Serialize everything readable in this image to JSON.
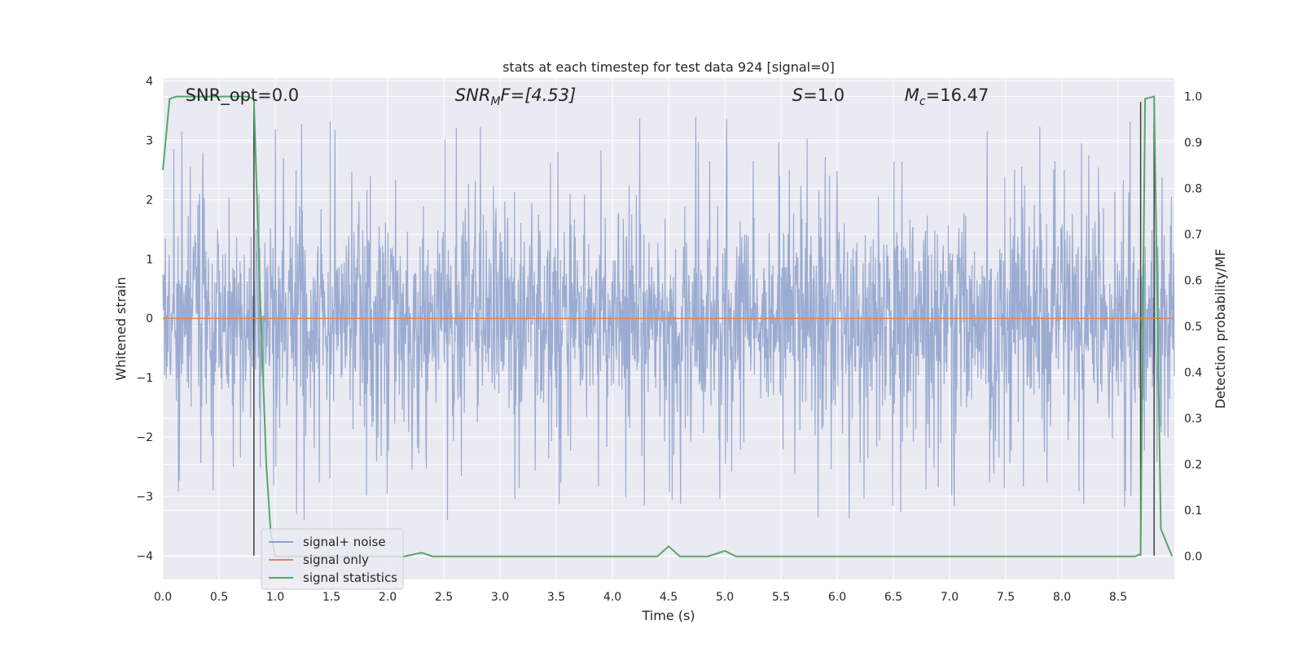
{
  "chart_data": {
    "type": "line",
    "title": "stats at each timestep for test data 924 [signal=0]",
    "xlabel": "Time (s)",
    "ylabel": "Whitened strain",
    "y2label": "Detection probability/MF",
    "xlim": [
      0.0,
      9.0
    ],
    "ylim": [
      -4.4,
      4.05
    ],
    "y2lim": [
      -0.05,
      1.04
    ],
    "x_ticks": [
      "0.0",
      "0.5",
      "1.0",
      "1.5",
      "2.0",
      "2.5",
      "3.0",
      "3.5",
      "4.0",
      "4.5",
      "5.0",
      "5.5",
      "6.0",
      "6.5",
      "7.0",
      "7.5",
      "8.0",
      "8.5"
    ],
    "y_ticks": [
      "4",
      "3",
      "2",
      "1",
      "0",
      "−1",
      "−2",
      "−3",
      "−4"
    ],
    "y2_ticks": [
      "1.0",
      "0.9",
      "0.8",
      "0.7",
      "0.6",
      "0.5",
      "0.4",
      "0.3",
      "0.2",
      "0.1",
      "0.0"
    ],
    "grid": true,
    "legend_position": "lower-left",
    "annotations": [
      {
        "text": "SNR_opt=0.0",
        "x": 0.2
      },
      {
        "text": "SNR",
        "sub": "M",
        "tail": "F=[4.53]",
        "x": 2.6,
        "italic": true
      },
      {
        "text": "S",
        "tail": "=1.0",
        "x": 5.6,
        "italic": true
      },
      {
        "text": "M",
        "sub": "c",
        "tail": "=16.47",
        "x": 6.6,
        "italic": true
      }
    ],
    "vertical_lines": [
      0.81,
      8.7,
      8.82
    ],
    "series": [
      {
        "name": "signal+ noise",
        "color": "#8da0cb",
        "axis": "left",
        "duration": 9.0,
        "core_sigma": 0.85,
        "peak_max": 3.6,
        "peak_min": -3.95
      },
      {
        "name": "signal only",
        "color": "#dd8452",
        "axis": "left",
        "x": [
          0.0,
          9.0
        ],
        "y": [
          0.0,
          0.0
        ]
      },
      {
        "name": "signal statistics",
        "color": "#55a868",
        "axis": "right",
        "x": [
          0.0,
          0.06,
          0.12,
          0.5,
          0.75,
          0.81,
          0.86,
          0.92,
          0.96,
          1.0,
          2.15,
          2.3,
          2.4,
          4.4,
          4.5,
          4.6,
          4.85,
          5.0,
          5.1,
          5.7,
          8.65,
          8.7,
          8.74,
          8.82,
          8.88,
          8.98
        ],
        "y": [
          0.84,
          0.995,
          1.0,
          1.0,
          1.0,
          0.995,
          0.6,
          0.2,
          0.05,
          0.0,
          0.0,
          0.008,
          0.0,
          0.0,
          0.022,
          0.0,
          0.0,
          0.012,
          0.0,
          0.0,
          0.0,
          0.005,
          0.995,
          1.0,
          0.06,
          0.0
        ]
      }
    ]
  }
}
